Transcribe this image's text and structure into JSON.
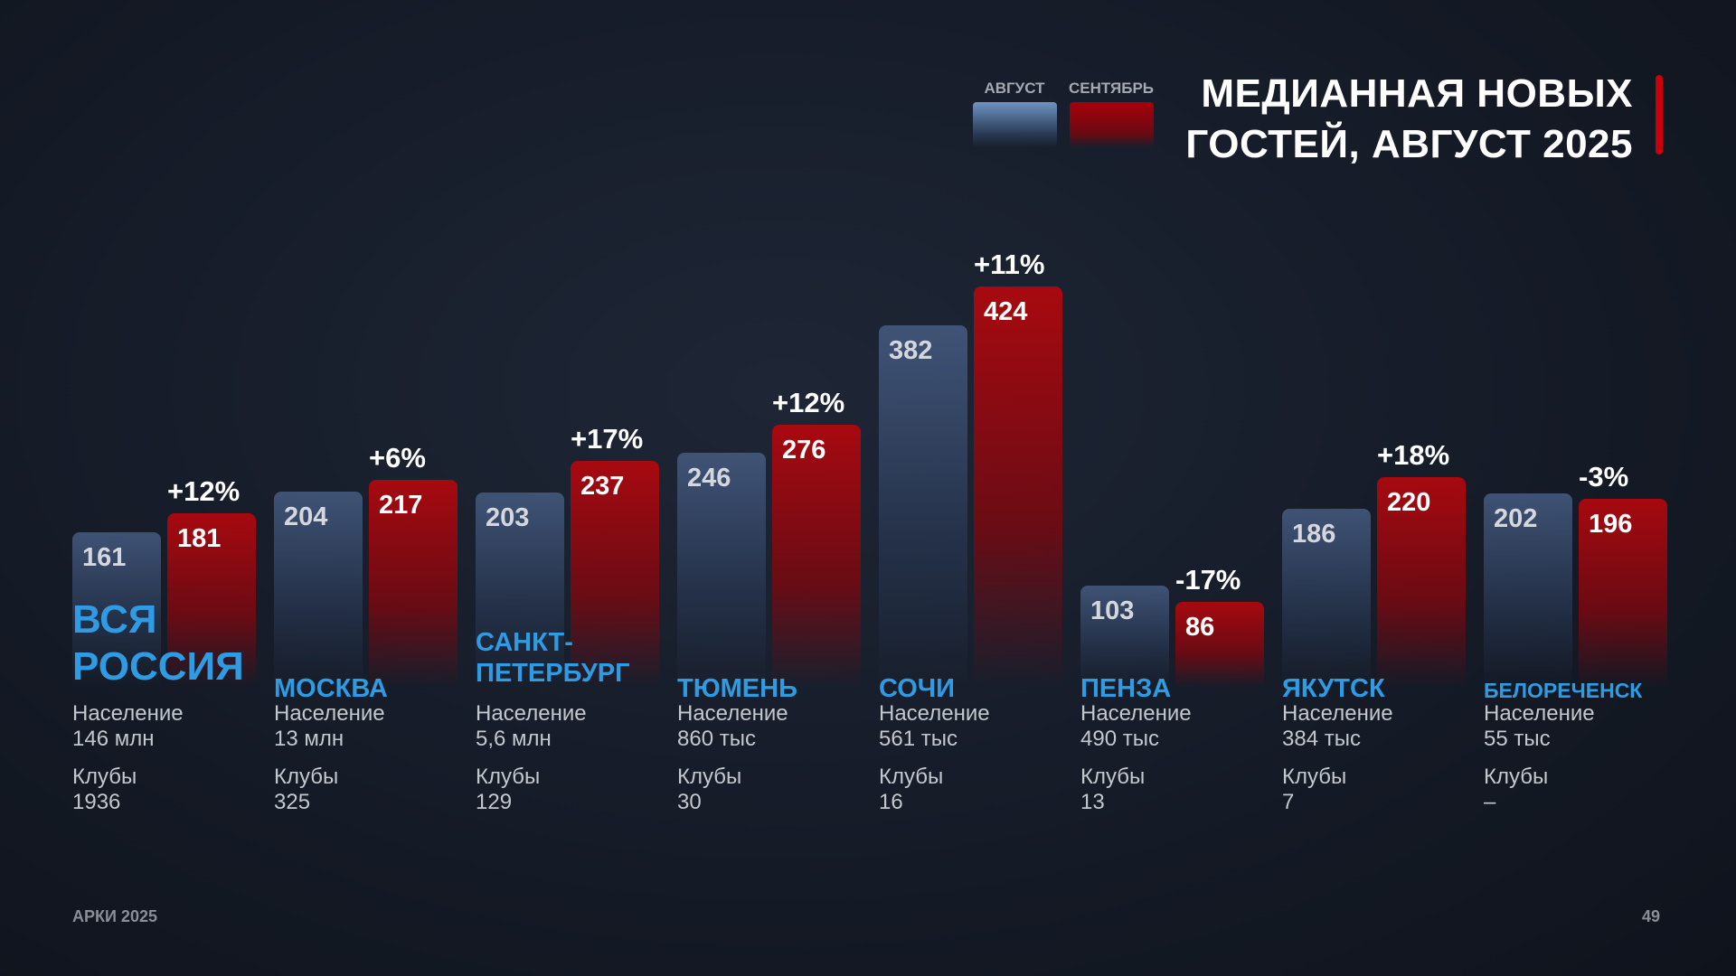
{
  "title_line1": "МЕДИАННАЯ НОВЫХ",
  "title_line2": "ГОСТЕЙ, АВГУСТ 2025",
  "footer_left": "АРКИ 2025",
  "page_number": "49",
  "population_label": "Население",
  "clubs_label": "Клубы",
  "colors": {
    "august": "#5b7fb3",
    "september": "#b0000c",
    "city": "#2f9be3",
    "accent": "#c8000c"
  },
  "chart_data": {
    "type": "bar",
    "title": "МЕДИАННАЯ НОВЫХ ГОСТЕЙ, АВГУСТ 2025",
    "legend": [
      "АВГУСТ",
      "СЕНТЯБРЬ"
    ],
    "legend_position": "top-right",
    "categories": [
      "ВСЯ РОССИЯ",
      "МОСКВА",
      "САНКТ-ПЕТЕРБУРГ",
      "ТЮМЕНЬ",
      "СОЧИ",
      "ПЕНЗА",
      "ЯКУТСК",
      "БЕЛОРЕЧЕНСК"
    ],
    "series": [
      {
        "name": "АВГУСТ",
        "values": [
          161,
          204,
          203,
          246,
          382,
          103,
          186,
          202
        ]
      },
      {
        "name": "СЕНТЯБРЬ",
        "values": [
          181,
          217,
          237,
          276,
          424,
          86,
          220,
          196
        ]
      }
    ],
    "changes": [
      "+12%",
      "+6%",
      "+17%",
      "+12%",
      "+11%",
      "-17%",
      "+18%",
      "-3%"
    ],
    "population": [
      "146 млн",
      "13 млн",
      "5,6 млн",
      "860 тыс",
      "561 тыс",
      "490 тыс",
      "384 тыс",
      "55 тыс"
    ],
    "clubs": [
      "1936",
      "325",
      "129",
      "30",
      "16",
      "13",
      "7",
      "–"
    ],
    "ylim": [
      0,
      450
    ]
  }
}
